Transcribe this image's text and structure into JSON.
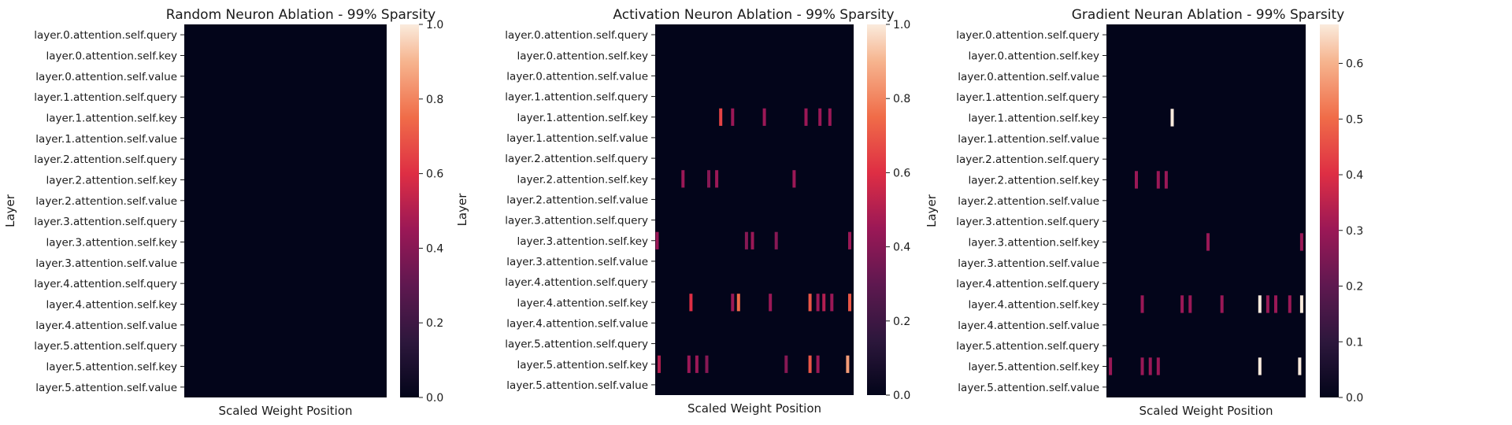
{
  "chart_data": [
    {
      "type": "heatmap",
      "title": "Random Neuron Ablation - 99% Sparsity",
      "xlabel": "Scaled Weight Position",
      "ylabel": "Layer",
      "x_range": [
        0,
        100
      ],
      "categories": [
        "layer.0.attention.self.query",
        "layer.0.attention.self.key",
        "layer.0.attention.self.value",
        "layer.1.attention.self.query",
        "layer.1.attention.self.key",
        "layer.1.attention.self.value",
        "layer.2.attention.self.query",
        "layer.2.attention.self.key",
        "layer.2.attention.self.value",
        "layer.3.attention.self.query",
        "layer.3.attention.self.key",
        "layer.3.attention.self.value",
        "layer.4.attention.self.query",
        "layer.4.attention.self.key",
        "layer.4.attention.self.value",
        "layer.5.attention.self.query",
        "layer.5.attention.self.key",
        "layer.5.attention.self.value"
      ],
      "colorbar": {
        "min": 0.0,
        "max": 1.0,
        "ticks": [
          "0.0",
          "0.2",
          "0.4",
          "0.6",
          "0.8",
          "1.0"
        ]
      },
      "cells": []
    },
    {
      "type": "heatmap",
      "title": "Activation Neuron Ablation - 99% Sparsity",
      "xlabel": "Scaled Weight Position",
      "ylabel": "Layer",
      "x_range": [
        0,
        100
      ],
      "categories": [
        "layer.0.attention.self.query",
        "layer.0.attention.self.key",
        "layer.0.attention.self.value",
        "layer.1.attention.self.query",
        "layer.1.attention.self.key",
        "layer.1.attention.self.value",
        "layer.2.attention.self.query",
        "layer.2.attention.self.key",
        "layer.2.attention.self.value",
        "layer.3.attention.self.query",
        "layer.3.attention.self.key",
        "layer.3.attention.self.value",
        "layer.4.attention.self.query",
        "layer.4.attention.self.key",
        "layer.4.attention.self.value",
        "layer.5.attention.self.query",
        "layer.5.attention.self.key",
        "layer.5.attention.self.value"
      ],
      "colorbar": {
        "min": 0.0,
        "max": 1.0,
        "ticks": [
          "0.0",
          "0.2",
          "0.4",
          "0.6",
          "0.8",
          "1.0"
        ]
      },
      "cells": [
        {
          "row": "layer.1.attention.self.key",
          "x": 33,
          "value": 0.65
        },
        {
          "row": "layer.1.attention.self.key",
          "x": 39,
          "value": 0.45
        },
        {
          "row": "layer.1.attention.self.key",
          "x": 55,
          "value": 0.45
        },
        {
          "row": "layer.1.attention.self.key",
          "x": 76,
          "value": 0.45
        },
        {
          "row": "layer.1.attention.self.key",
          "x": 83,
          "value": 0.45
        },
        {
          "row": "layer.1.attention.self.key",
          "x": 88,
          "value": 0.45
        },
        {
          "row": "layer.2.attention.self.key",
          "x": 14,
          "value": 0.45
        },
        {
          "row": "layer.2.attention.self.key",
          "x": 27,
          "value": 0.4
        },
        {
          "row": "layer.2.attention.self.key",
          "x": 31,
          "value": 0.45
        },
        {
          "row": "layer.2.attention.self.key",
          "x": 70,
          "value": 0.45
        },
        {
          "row": "layer.3.attention.self.key",
          "x": 1,
          "value": 0.45
        },
        {
          "row": "layer.3.attention.self.key",
          "x": 46,
          "value": 0.4
        },
        {
          "row": "layer.3.attention.self.key",
          "x": 49,
          "value": 0.45
        },
        {
          "row": "layer.3.attention.self.key",
          "x": 61,
          "value": 0.4
        },
        {
          "row": "layer.3.attention.self.key",
          "x": 98,
          "value": 0.45
        },
        {
          "row": "layer.4.attention.self.key",
          "x": 18,
          "value": 0.6
        },
        {
          "row": "layer.4.attention.self.key",
          "x": 39,
          "value": 0.45
        },
        {
          "row": "layer.4.attention.self.key",
          "x": 42,
          "value": 0.75
        },
        {
          "row": "layer.4.attention.self.key",
          "x": 58,
          "value": 0.45
        },
        {
          "row": "layer.4.attention.self.key",
          "x": 78,
          "value": 0.7
        },
        {
          "row": "layer.4.attention.self.key",
          "x": 82,
          "value": 0.45
        },
        {
          "row": "layer.4.attention.self.key",
          "x": 85,
          "value": 0.5
        },
        {
          "row": "layer.4.attention.self.key",
          "x": 89,
          "value": 0.45
        },
        {
          "row": "layer.4.attention.self.key",
          "x": 98,
          "value": 0.7
        },
        {
          "row": "layer.5.attention.self.key",
          "x": 2,
          "value": 0.5
        },
        {
          "row": "layer.5.attention.self.key",
          "x": 17,
          "value": 0.45
        },
        {
          "row": "layer.5.attention.self.key",
          "x": 21,
          "value": 0.45
        },
        {
          "row": "layer.5.attention.self.key",
          "x": 26,
          "value": 0.4
        },
        {
          "row": "layer.5.attention.self.key",
          "x": 66,
          "value": 0.4
        },
        {
          "row": "layer.5.attention.self.key",
          "x": 78,
          "value": 0.7
        },
        {
          "row": "layer.5.attention.self.key",
          "x": 82,
          "value": 0.45
        },
        {
          "row": "layer.5.attention.self.key",
          "x": 97,
          "value": 0.85
        }
      ]
    },
    {
      "type": "heatmap",
      "title": "Gradient Neuran Ablation - 99% Sparsity",
      "xlabel": "Scaled Weight Position",
      "ylabel": "Layer",
      "x_range": [
        0,
        100
      ],
      "categories": [
        "layer.0.attention.self.query",
        "layer.0.attention.self.key",
        "layer.0.attention.self.value",
        "layer.1.attention.self.query",
        "layer.1.attention.self.key",
        "layer.1.attention.self.value",
        "layer.2.attention.self.query",
        "layer.2.attention.self.key",
        "layer.2.attention.self.value",
        "layer.3.attention.self.query",
        "layer.3.attention.self.key",
        "layer.3.attention.self.value",
        "layer.4.attention.self.query",
        "layer.4.attention.self.key",
        "layer.4.attention.self.value",
        "layer.5.attention.self.query",
        "layer.5.attention.self.key",
        "layer.5.attention.self.value"
      ],
      "colorbar": {
        "min": 0.0,
        "max": 0.67,
        "ticks": [
          "0.0",
          "0.1",
          "0.2",
          "0.3",
          "0.4",
          "0.5",
          "0.6"
        ]
      },
      "cells": [
        {
          "row": "layer.1.attention.self.key",
          "x": 33,
          "value": 0.67
        },
        {
          "row": "layer.2.attention.self.key",
          "x": 15,
          "value": 0.3
        },
        {
          "row": "layer.2.attention.self.key",
          "x": 26,
          "value": 0.3
        },
        {
          "row": "layer.2.attention.self.key",
          "x": 30,
          "value": 0.3
        },
        {
          "row": "layer.3.attention.self.key",
          "x": 51,
          "value": 0.3
        },
        {
          "row": "layer.3.attention.self.key",
          "x": 98,
          "value": 0.3
        },
        {
          "row": "layer.4.attention.self.key",
          "x": 18,
          "value": 0.3
        },
        {
          "row": "layer.4.attention.self.key",
          "x": 38,
          "value": 0.3
        },
        {
          "row": "layer.4.attention.self.key",
          "x": 42,
          "value": 0.3
        },
        {
          "row": "layer.4.attention.self.key",
          "x": 58,
          "value": 0.3
        },
        {
          "row": "layer.4.attention.self.key",
          "x": 77,
          "value": 0.67
        },
        {
          "row": "layer.4.attention.self.key",
          "x": 81,
          "value": 0.3
        },
        {
          "row": "layer.4.attention.self.key",
          "x": 85,
          "value": 0.3
        },
        {
          "row": "layer.4.attention.self.key",
          "x": 92,
          "value": 0.3
        },
        {
          "row": "layer.4.attention.self.key",
          "x": 98,
          "value": 0.67
        },
        {
          "row": "layer.5.attention.self.key",
          "x": 2,
          "value": 0.3
        },
        {
          "row": "layer.5.attention.self.key",
          "x": 18,
          "value": 0.3
        },
        {
          "row": "layer.5.attention.self.key",
          "x": 22,
          "value": 0.3
        },
        {
          "row": "layer.5.attention.self.key",
          "x": 26,
          "value": 0.3
        },
        {
          "row": "layer.5.attention.self.key",
          "x": 77,
          "value": 0.67
        },
        {
          "row": "layer.5.attention.self.key",
          "x": 97,
          "value": 0.67
        }
      ]
    }
  ]
}
